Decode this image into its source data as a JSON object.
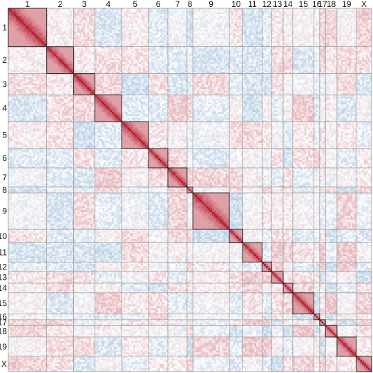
{
  "chart_data": {
    "type": "heatmap",
    "title": "",
    "xlabel": "",
    "ylabel": "",
    "grid": true,
    "legend": "none",
    "colors": {
      "positive": "#b2182b",
      "negative": "#2166ac",
      "neutral": "#ffffff",
      "block_outline": "#222222",
      "grid": "#9a9a9a"
    },
    "value_range": [
      -1,
      1
    ],
    "categories": [
      "1",
      "2",
      "3",
      "4",
      "5",
      "6",
      "7",
      "8",
      "9",
      "10",
      "11",
      "12",
      "13",
      "14",
      "15",
      "16",
      "17",
      "18",
      "19",
      "X"
    ],
    "bins_per_category": [
      20,
      14,
      11,
      14,
      14,
      10,
      10,
      3,
      19,
      7,
      10,
      5,
      6,
      5,
      11,
      3,
      3,
      6,
      10,
      8
    ],
    "diagonal_block_peak": [
      0.92,
      0.88,
      0.95,
      0.9,
      0.93,
      0.9,
      0.92,
      0.85,
      0.9,
      0.88,
      0.9,
      0.88,
      0.9,
      0.88,
      0.9,
      0.86,
      0.9,
      0.9,
      0.88,
      0.9
    ],
    "off_diagonal_range": [
      -0.28,
      0.32
    ],
    "seed": 7
  }
}
